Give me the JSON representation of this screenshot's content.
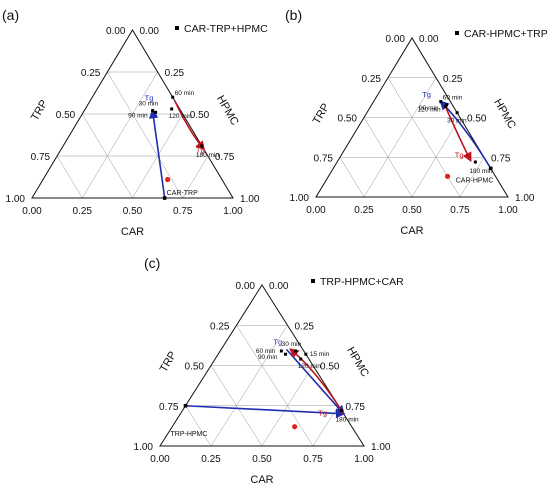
{
  "colors": {
    "blue_path": "#1f2db0",
    "red_path": "#c0141c",
    "red_point": "#e0201c",
    "marker": "#000000",
    "grid": "#9a9a9a"
  },
  "chart_data": [
    {
      "type": "ternary",
      "panel_label": "(a)",
      "legend": "CAR-TRP+HPMC",
      "axes": {
        "top": "HPMC",
        "left_vertex": "TRP",
        "right_vertex": "CAR",
        "left_label": "TRP",
        "right_label": "HPMC",
        "bottom_label": "CAR"
      },
      "ticks": [
        "0.00",
        "0.25",
        "0.50",
        "0.75",
        "1.00"
      ],
      "start_point": {
        "label": "CAR-TRP",
        "CAR": 0.66,
        "TRP": 0.34,
        "HPMC": 0.0
      },
      "time_points": [
        {
          "label": "30 min",
          "CAR": 0.34,
          "TRP": 0.14,
          "HPMC": 0.52
        },
        {
          "label": "60 min",
          "CAR": 0.4,
          "TRP": 0.0,
          "HPMC": 0.6
        },
        {
          "label": "90 min",
          "CAR": 0.36,
          "TRP": 0.13,
          "HPMC": 0.51
        },
        {
          "label": "120 min",
          "CAR": 0.43,
          "TRP": 0.04,
          "HPMC": 0.53
        },
        {
          "label": "180 min",
          "CAR": 0.69,
          "TRP": 0.0,
          "HPMC": 0.31
        }
      ],
      "tg_labels": [
        {
          "text": "Tg",
          "CAR": 0.32,
          "TRP": 0.1,
          "HPMC": 0.58,
          "color": "blue"
        },
        {
          "text": "Tg",
          "CAR": 0.73,
          "TRP": 0.0,
          "HPMC": 0.27,
          "color": "red"
        }
      ],
      "red_point": {
        "CAR": 0.62,
        "TRP": 0.27,
        "HPMC": 0.11
      },
      "paths": [
        {
          "color": "blue",
          "from": "start",
          "points": [
            [
              0.66,
              0.34,
              0.0
            ],
            [
              0.34,
              0.14,
              0.52
            ]
          ]
        },
        {
          "color": "red",
          "points": [
            [
              0.42,
              0.0,
              0.58
            ],
            [
              0.58,
              0.02,
              0.4
            ],
            [
              0.71,
              0.0,
              0.29
            ]
          ]
        }
      ]
    },
    {
      "type": "ternary",
      "panel_label": "(b)",
      "legend": "CAR-HPMC+TRP",
      "axes": {
        "top": "HPMC",
        "left_vertex": "TRP",
        "right_vertex": "CAR",
        "left_label": "TRP",
        "right_label": "HPMC",
        "bottom_label": "CAR"
      },
      "ticks": [
        "0.00",
        "0.25",
        "0.50",
        "0.75",
        "1.00"
      ],
      "start_point": {
        "label": "CAR-HPMC",
        "CAR": 0.82,
        "TRP": 0.0,
        "HPMC": 0.18
      },
      "time_points": [
        {
          "label": "60 min",
          "CAR": 0.35,
          "TRP": 0.05,
          "HPMC": 0.6
        },
        {
          "label": "90 min",
          "CAR": 0.39,
          "TRP": 0.03,
          "HPMC": 0.58
        },
        {
          "label": "120 min",
          "CAR": 0.39,
          "TRP": 0.04,
          "HPMC": 0.57
        },
        {
          "label": "30 min",
          "CAR": 0.47,
          "TRP": 0.0,
          "HPMC": 0.53
        },
        {
          "label": "180 min",
          "CAR": 0.72,
          "TRP": 0.06,
          "HPMC": 0.22
        }
      ],
      "tg_labels": [
        {
          "text": "Tg",
          "CAR": 0.29,
          "TRP": 0.08,
          "HPMC": 0.63,
          "color": "blue"
        },
        {
          "text": "Tg",
          "CAR": 0.65,
          "TRP": 0.1,
          "HPMC": 0.25,
          "color": "red"
        }
      ],
      "red_point": {
        "CAR": 0.62,
        "TRP": 0.25,
        "HPMC": 0.13
      },
      "paths": [
        {
          "color": "blue",
          "from": "start",
          "points": [
            [
              0.82,
              0.0,
              0.18
            ],
            [
              0.56,
              0.0,
              0.44
            ],
            [
              0.35,
              0.05,
              0.6
            ]
          ]
        },
        {
          "color": "red",
          "points": [
            [
              0.38,
              0.04,
              0.58
            ],
            [
              0.57,
              0.07,
              0.36
            ],
            [
              0.69,
              0.08,
              0.23
            ]
          ]
        }
      ]
    },
    {
      "type": "ternary",
      "panel_label": "(c)",
      "legend": "TRP-HPMC+CAR",
      "axes": {
        "top": "HPMC",
        "left_vertex": "TRP",
        "right_vertex": "CAR",
        "left_label": "TRP",
        "right_label": "HPMC",
        "bottom_label": "CAR"
      },
      "ticks": [
        "0.00",
        "0.25",
        "0.50",
        "0.75",
        "1.00"
      ],
      "start_point": {
        "label": "TRP-HPMC",
        "CAR": 0.0,
        "TRP": 0.75,
        "HPMC": 0.25
      },
      "time_points": [
        {
          "label": "30 min",
          "CAR": 0.37,
          "TRP": 0.04,
          "HPMC": 0.59
        },
        {
          "label": "15 min",
          "CAR": 0.43,
          "TRP": 0.0,
          "HPMC": 0.57
        },
        {
          "label": "60 min",
          "CAR": 0.3,
          "TRP": 0.11,
          "HPMC": 0.59
        },
        {
          "label": "90 min",
          "CAR": 0.33,
          "TRP": 0.1,
          "HPMC": 0.57
        },
        {
          "label": "120 min",
          "CAR": 0.42,
          "TRP": 0.04,
          "HPMC": 0.54
        },
        {
          "label": "180 min",
          "CAR": 0.78,
          "TRP": 0.0,
          "HPMC": 0.22
        }
      ],
      "tg_labels": [
        {
          "text": "Tg",
          "CAR": 0.29,
          "TRP": 0.08,
          "HPMC": 0.63,
          "color": "blue"
        },
        {
          "text": "Tg",
          "CAR": 0.73,
          "TRP": 0.08,
          "HPMC": 0.19,
          "color": "red"
        }
      ],
      "red_point": {
        "CAR": 0.6,
        "TRP": 0.28,
        "HPMC": 0.12
      },
      "paths": [
        {
          "color": "blue",
          "from": "start",
          "points": [
            [
              0.0,
              0.75,
              0.25
            ],
            [
              0.8,
              0.0,
              0.2
            ]
          ]
        },
        {
          "color": "blue",
          "points": [
            [
              0.32,
              0.08,
              0.6
            ],
            [
              0.8,
              0.0,
              0.2
            ]
          ]
        },
        {
          "color": "red",
          "points": [
            [
              0.8,
              0.0,
              0.2
            ],
            [
              0.53,
              0.0,
              0.47
            ],
            [
              0.34,
              0.06,
              0.6
            ]
          ]
        }
      ]
    }
  ]
}
